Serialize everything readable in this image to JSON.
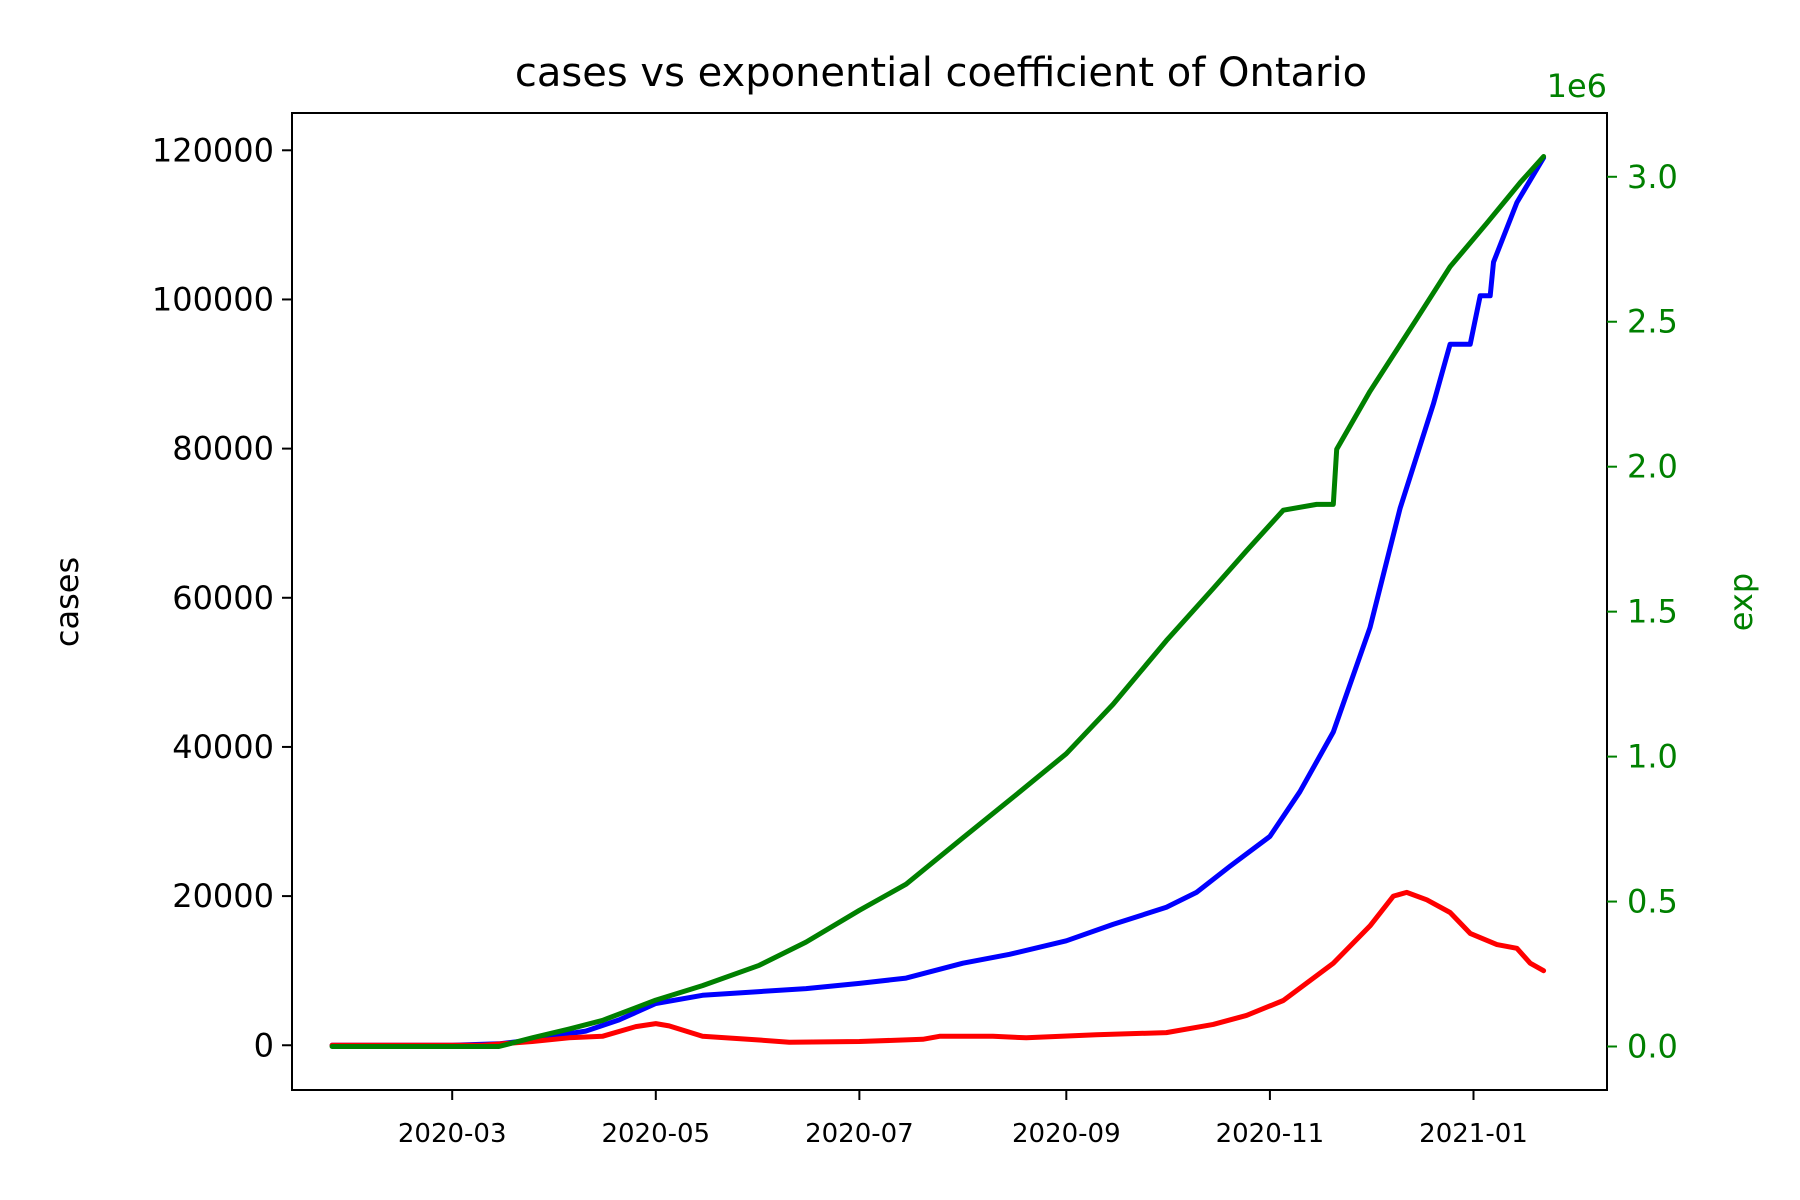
{
  "chart_data": {
    "type": "line",
    "title": "cases vs exponential coefficient of Ontario",
    "ylabel": "cases",
    "ylabel_right": "exp",
    "right_axis_multiplier": "1e6",
    "xlim": [
      "2020-01-13",
      "2021-02-10"
    ],
    "ylim": [
      -6000,
      125000
    ],
    "ylim_right": [
      -0.0,
      3.0
    ],
    "ylim_right_full": [
      -0.15,
      3.22
    ],
    "x_ticks": [
      "2020-03",
      "2020-05",
      "2020-07",
      "2020-09",
      "2020-11",
      "2021-01"
    ],
    "y_ticks": [
      0,
      20000,
      40000,
      60000,
      80000,
      100000,
      120000
    ],
    "y_ticks_right": [
      "0.0",
      "0.5",
      "1.0",
      "1.5",
      "2.0",
      "2.5",
      "3.0"
    ],
    "colors": {
      "blue": "#0000ff",
      "red": "#ff0000",
      "green": "#008000",
      "axis": "#000000"
    },
    "series": [
      {
        "axis": "left",
        "color": "#0000ff",
        "points": [
          [
            "2020-01-25",
            0
          ],
          [
            "2020-03-01",
            0
          ],
          [
            "2020-03-15",
            200
          ],
          [
            "2020-03-25",
            700
          ],
          [
            "2020-04-01",
            1300
          ],
          [
            "2020-04-10",
            1900
          ],
          [
            "2020-04-20",
            3400
          ],
          [
            "2020-05-01",
            5600
          ],
          [
            "2020-05-15",
            6700
          ],
          [
            "2020-06-01",
            7200
          ],
          [
            "2020-06-15",
            7600
          ],
          [
            "2020-07-01",
            8300
          ],
          [
            "2020-07-15",
            9000
          ],
          [
            "2020-08-01",
            11000
          ],
          [
            "2020-08-15",
            12200
          ],
          [
            "2020-09-01",
            14000
          ],
          [
            "2020-09-15",
            16200
          ],
          [
            "2020-10-01",
            18500
          ],
          [
            "2020-10-10",
            20500
          ],
          [
            "2020-10-20",
            24000
          ],
          [
            "2020-11-01",
            28000
          ],
          [
            "2020-11-10",
            34000
          ],
          [
            "2020-11-20",
            42000
          ],
          [
            "2020-12-01",
            56000
          ],
          [
            "2020-12-10",
            72000
          ],
          [
            "2020-12-20",
            86000
          ],
          [
            "2020-12-25",
            94000
          ],
          [
            "2020-12-31",
            94000
          ],
          [
            "2021-01-03",
            100500
          ],
          [
            "2021-01-06",
            100500
          ],
          [
            "2021-01-07",
            105000
          ],
          [
            "2021-01-14",
            113000
          ],
          [
            "2021-01-22",
            119000
          ]
        ]
      },
      {
        "axis": "left",
        "color": "#ff0000",
        "points": [
          [
            "2020-01-25",
            0
          ],
          [
            "2020-03-10",
            0
          ],
          [
            "2020-03-25",
            500
          ],
          [
            "2020-04-05",
            1000
          ],
          [
            "2020-04-15",
            1200
          ],
          [
            "2020-04-25",
            2500
          ],
          [
            "2020-05-01",
            2900
          ],
          [
            "2020-05-05",
            2600
          ],
          [
            "2020-05-15",
            1200
          ],
          [
            "2020-06-01",
            700
          ],
          [
            "2020-06-10",
            400
          ],
          [
            "2020-07-01",
            500
          ],
          [
            "2020-07-20",
            800
          ],
          [
            "2020-07-25",
            1200
          ],
          [
            "2020-08-10",
            1200
          ],
          [
            "2020-08-20",
            1000
          ],
          [
            "2020-09-10",
            1400
          ],
          [
            "2020-10-01",
            1700
          ],
          [
            "2020-10-15",
            2800
          ],
          [
            "2020-10-25",
            4000
          ],
          [
            "2020-11-05",
            6000
          ],
          [
            "2020-11-20",
            11000
          ],
          [
            "2020-12-01",
            16000
          ],
          [
            "2020-12-08",
            20000
          ],
          [
            "2020-12-12",
            20500
          ],
          [
            "2020-12-18",
            19500
          ],
          [
            "2020-12-25",
            17800
          ],
          [
            "2020-12-31",
            15000
          ],
          [
            "2021-01-08",
            13500
          ],
          [
            "2021-01-14",
            13000
          ],
          [
            "2021-01-18",
            11000
          ],
          [
            "2021-01-22",
            10000
          ]
        ]
      },
      {
        "axis": "right",
        "color": "#008000",
        "points": [
          [
            "2020-01-25",
            0
          ],
          [
            "2020-03-15",
            0
          ],
          [
            "2020-03-25",
            0.03
          ],
          [
            "2020-04-05",
            0.06
          ],
          [
            "2020-04-15",
            0.09
          ],
          [
            "2020-05-01",
            0.16
          ],
          [
            "2020-05-15",
            0.21
          ],
          [
            "2020-06-01",
            0.28
          ],
          [
            "2020-06-15",
            0.36
          ],
          [
            "2020-07-01",
            0.47
          ],
          [
            "2020-07-15",
            0.56
          ],
          [
            "2020-08-01",
            0.72
          ],
          [
            "2020-08-15",
            0.85
          ],
          [
            "2020-09-01",
            1.01
          ],
          [
            "2020-09-15",
            1.18
          ],
          [
            "2020-10-01",
            1.4
          ],
          [
            "2020-10-15",
            1.58
          ],
          [
            "2020-10-25",
            1.71
          ],
          [
            "2020-11-05",
            1.85
          ],
          [
            "2020-11-15",
            1.87
          ],
          [
            "2020-11-20",
            1.87
          ],
          [
            "2020-11-21",
            2.06
          ],
          [
            "2020-12-01",
            2.26
          ],
          [
            "2020-12-15",
            2.51
          ],
          [
            "2020-12-25",
            2.69
          ],
          [
            "2021-01-05",
            2.84
          ],
          [
            "2021-01-15",
            2.98
          ],
          [
            "2021-01-22",
            3.07
          ]
        ]
      }
    ]
  }
}
